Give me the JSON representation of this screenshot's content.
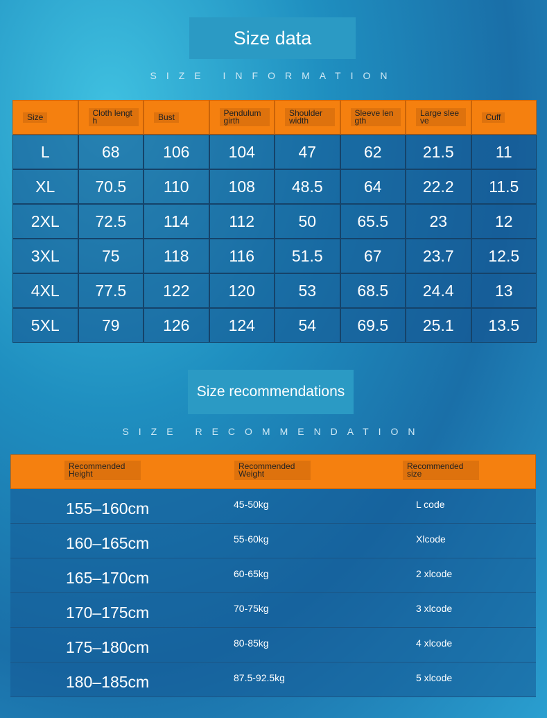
{
  "section1": {
    "title": "Size data",
    "subtitle": "SIZE INFORMATION",
    "table": {
      "header": [
        "Size",
        "Cloth length",
        "Bust",
        "Pendulum girth",
        "Shoulder width",
        "Sleeve length",
        "Large sleeve",
        "Cuff"
      ],
      "rows": [
        [
          "L",
          68,
          106,
          104,
          47,
          62,
          21.5,
          11
        ],
        [
          "XL",
          70.5,
          110,
          108,
          48.5,
          64,
          22.2,
          11.5
        ],
        [
          "2XL",
          72.5,
          114,
          112,
          50,
          65.5,
          23,
          12
        ],
        [
          "3XL",
          75,
          118,
          116,
          51.5,
          67,
          23.7,
          12.5
        ],
        [
          "4XL",
          77.5,
          122,
          120,
          53,
          68.5,
          24.4,
          13
        ],
        [
          "5XL",
          79,
          126,
          124,
          54,
          69.5,
          25.1,
          13.5
        ]
      ]
    }
  },
  "section2": {
    "title": "Size recommendations",
    "subtitle": "SIZE RECOMMENDATION",
    "table": {
      "header": [
        "Recommended Height",
        "Recommended Weight",
        "Recommended size"
      ],
      "rows": [
        [
          "155–160cm",
          "45-50kg",
          "L code"
        ],
        [
          "160–165cm",
          "55-60kg",
          "Xlcode"
        ],
        [
          "165–170cm",
          "60-65kg",
          "2 xlcode"
        ],
        [
          "170–175cm",
          "70-75kg",
          "3 xlcode"
        ],
        [
          "175–180cm",
          "80-85kg",
          "4 xlcode"
        ],
        [
          "180–185cm",
          "87.5-92.5kg",
          "5 xlcode"
        ]
      ]
    }
  }
}
